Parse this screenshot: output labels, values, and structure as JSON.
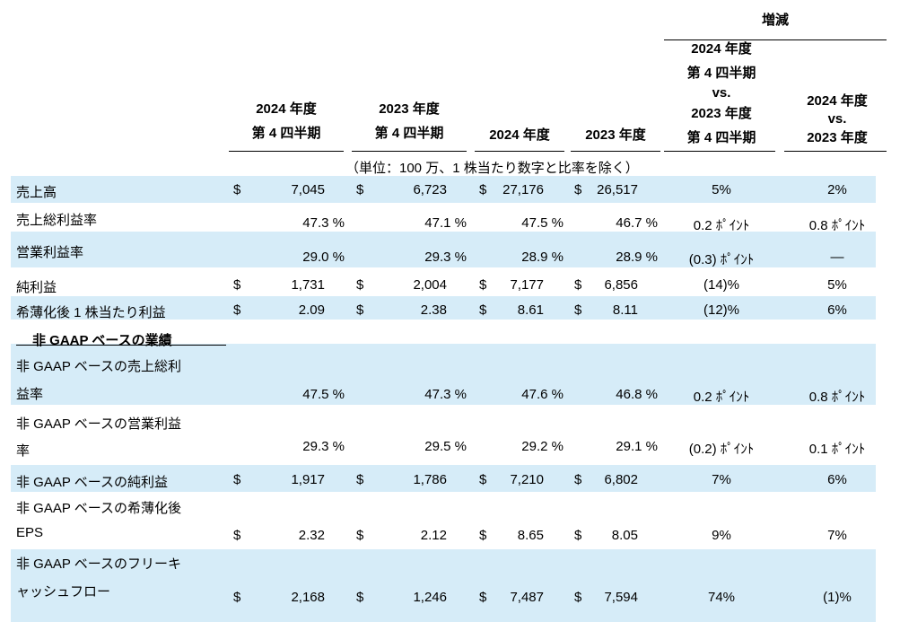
{
  "header": {
    "change_group": "増減",
    "q4_2024": [
      "2024 年度",
      "第 4 四半期"
    ],
    "q4_2023": [
      "2023 年度",
      "第 4 四半期"
    ],
    "fy_2024": "2024 年度",
    "fy_2023": "2023 年度",
    "q4_change": [
      "2024 年度",
      "第 4 四半期",
      "vs.",
      "2023 年度",
      "第 4 四半期"
    ],
    "fy_change": [
      "2024 年度",
      "vs.",
      "2023 年度"
    ]
  },
  "unit_note": "（単位：100 万、1 株当たり数字と比率を除く）",
  "section_non_gaap": "非 GAAP ベースの業績",
  "rows": [
    {
      "label": [
        "売上高"
      ],
      "d1": "$",
      "v1": "7,045",
      "d2": "$",
      "v2": "6,723",
      "d3": "$",
      "v3": "27,176",
      "d4": "$",
      "v4": "26,517",
      "c1": "5%",
      "c2": "2%"
    },
    {
      "label": [
        "売上総利益率"
      ],
      "d1": "",
      "v1": "47.3 %",
      "d2": "",
      "v2": "47.1 %",
      "d3": "",
      "v3": "47.5 %",
      "d4": "",
      "v4": "46.7 %",
      "c1": "0.2 ﾎﾟｲﾝﾄ",
      "c2": "0.8 ﾎﾟｲﾝﾄ"
    },
    {
      "label": [
        "営業利益率"
      ],
      "d1": "",
      "v1": "29.0 %",
      "d2": "",
      "v2": "29.3 %",
      "d3": "",
      "v3": "28.9 %",
      "d4": "",
      "v4": "28.9 %",
      "c1": "(0.3) ﾎﾟｲﾝﾄ",
      "c2": "—"
    },
    {
      "label": [
        "純利益"
      ],
      "d1": "$",
      "v1": "1,731",
      "d2": "$",
      "v2": "2,004",
      "d3": "$",
      "v3": "7,177",
      "d4": "$",
      "v4": "6,856",
      "c1": "(14)%",
      "c2": "5%"
    },
    {
      "label": [
        "希薄化後 1 株当たり利益"
      ],
      "d1": "$",
      "v1": "2.09",
      "d2": "$",
      "v2": "2.38",
      "d3": "$",
      "v3": "8.61",
      "d4": "$",
      "v4": "8.11",
      "c1": "(12)%",
      "c2": "6%"
    },
    {
      "label": [
        "非 GAAP ベースの売上総利",
        "益率"
      ],
      "d1": "",
      "v1": "47.5 %",
      "d2": "",
      "v2": "47.3 %",
      "d3": "",
      "v3": "47.6 %",
      "d4": "",
      "v4": "46.8 %",
      "c1": "0.2 ﾎﾟｲﾝﾄ",
      "c2": "0.8 ﾎﾟｲﾝﾄ"
    },
    {
      "label": [
        "非 GAAP ベースの営業利益",
        "率"
      ],
      "d1": "",
      "v1": "29.3 %",
      "d2": "",
      "v2": "29.5 %",
      "d3": "",
      "v3": "29.2 %",
      "d4": "",
      "v4": "29.1 %",
      "c1": "(0.2) ﾎﾟｲﾝﾄ",
      "c2": "0.1 ﾎﾟｲﾝﾄ"
    },
    {
      "label": [
        "非 GAAP ベースの純利益"
      ],
      "d1": "$",
      "v1": "1,917",
      "d2": "$",
      "v2": "1,786",
      "d3": "$",
      "v3": "7,210",
      "d4": "$",
      "v4": "6,802",
      "c1": "7%",
      "c2": "6%"
    },
    {
      "label": [
        "非 GAAP ベースの希薄化後",
        "EPS"
      ],
      "d1": "$",
      "v1": "2.32",
      "d2": "$",
      "v2": "2.12",
      "d3": "$",
      "v3": "8.65",
      "d4": "$",
      "v4": "8.05",
      "c1": "9%",
      "c2": "7%"
    },
    {
      "label": [
        "非 GAAP ベースのフリーキ",
        "ャッシュフロー"
      ],
      "d1": "$",
      "v1": "2,168",
      "d2": "$",
      "v2": "1,246",
      "d3": "$",
      "v3": "7,487",
      "d4": "$",
      "v4": "7,594",
      "c1": "74%",
      "c2": "(1)%"
    }
  ]
}
